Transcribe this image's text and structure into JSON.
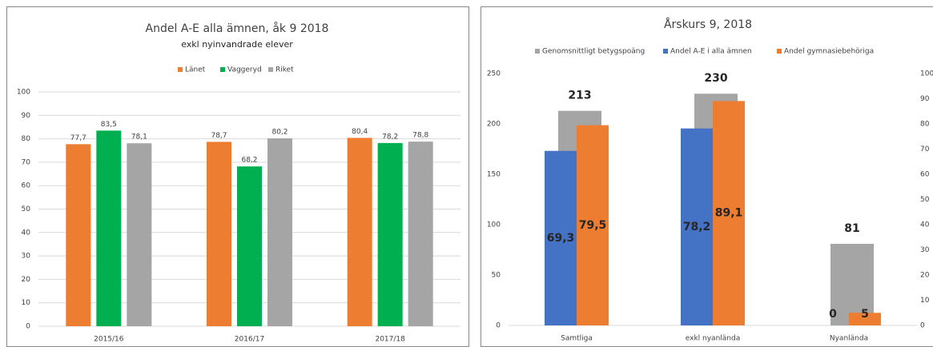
{
  "chart_data": [
    {
      "type": "bar",
      "title": "Andel A-E alla ämnen, åk 9 2018",
      "subtitle": "exkl nyinvandrade elever",
      "categories": [
        "2015/16",
        "2016/17",
        "2017/18"
      ],
      "series": [
        {
          "name": "Länet",
          "color": "#ed7d31",
          "values": [
            77.7,
            78.7,
            80.4
          ],
          "value_labels": [
            "77,7",
            "78,7",
            "80,4"
          ]
        },
        {
          "name": "Vaggeryd",
          "color": "#00b050",
          "values": [
            83.5,
            68.2,
            78.2
          ],
          "value_labels": [
            "83,5",
            "68,2",
            "78,2"
          ]
        },
        {
          "name": "Riket",
          "color": "#a5a5a5",
          "values": [
            78.1,
            80.2,
            78.8
          ],
          "value_labels": [
            "78,1",
            "80,2",
            "78,8"
          ]
        }
      ],
      "ylim": [
        0,
        100
      ],
      "yticks": [
        0,
        10,
        20,
        30,
        40,
        50,
        60,
        70,
        80,
        90,
        100
      ],
      "legend": "top"
    },
    {
      "type": "bar",
      "title": "Årskurs 9, 2018",
      "categories": [
        "Samtliga",
        "exkl nyanlända",
        "Nyanlända"
      ],
      "series": [
        {
          "name": "Genomsnittligt betygspoäng",
          "color": "#a5a5a5",
          "values": [
            213,
            230,
            81
          ]
        },
        {
          "name": "Andel A-E i alla ämnen",
          "color": "#4472c4",
          "axis": "y2",
          "values": [
            69.3,
            78.2,
            0
          ],
          "value_labels": [
            "69,3",
            "78,2",
            "0"
          ]
        },
        {
          "name": "Andel gymnasiebehöriga",
          "color": "#ed7d31",
          "axis": "y2",
          "values": [
            79.5,
            89.1,
            5
          ],
          "value_labels": [
            "79,5",
            "89,1",
            "5"
          ]
        }
      ],
      "ylim": [
        0,
        250
      ],
      "yticks": [
        0,
        50,
        100,
        150,
        200,
        250
      ],
      "y2lim": [
        0,
        100
      ],
      "y2ticks": [
        0,
        10,
        20,
        30,
        40,
        50,
        60,
        70,
        80,
        90,
        100
      ],
      "legend": "top"
    }
  ]
}
